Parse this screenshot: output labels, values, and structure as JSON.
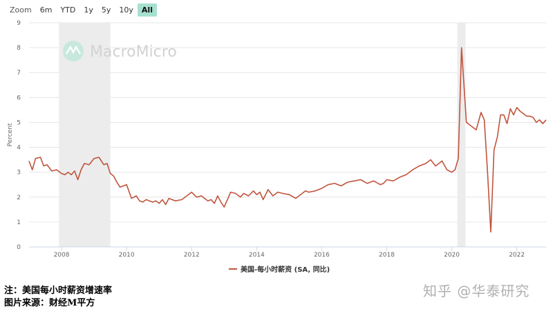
{
  "zoom": {
    "label": "Zoom",
    "buttons": [
      "6m",
      "YTD",
      "1y",
      "5y",
      "10y",
      "All"
    ],
    "active": "All"
  },
  "watermark": "MacroMicro",
  "footer": {
    "line1": "注：美国每小时薪资增速率",
    "line2": "图片来源：财经M平方",
    "watermark": "知乎 @华泰研究"
  },
  "chart_data": {
    "type": "line",
    "ylabel": "Percent",
    "ylim": [
      0,
      9
    ],
    "yticks": [
      "0",
      "1",
      "2",
      "3",
      "4",
      "5",
      "6",
      "7",
      "8",
      "9"
    ],
    "xlim": [
      2007.0,
      2022.9
    ],
    "xticks": [
      "2008",
      "2010",
      "2012",
      "2014",
      "2016",
      "2018",
      "2020",
      "2022"
    ],
    "grid": true,
    "legend": "bottom-center",
    "line_color": "#c0533c",
    "shaded_periods": [
      [
        2007.92,
        2009.5
      ],
      [
        2020.17,
        2020.42
      ]
    ],
    "series": [
      {
        "name": "美国-每小时薪资 (SA, 同比)",
        "x": [
          2007.0,
          2007.1,
          2007.2,
          2007.35,
          2007.45,
          2007.55,
          2007.7,
          2007.85,
          2008.0,
          2008.1,
          2008.2,
          2008.3,
          2008.4,
          2008.5,
          2008.6,
          2008.7,
          2008.85,
          2009.0,
          2009.15,
          2009.3,
          2009.4,
          2009.5,
          2009.6,
          2009.7,
          2009.8,
          2009.9,
          2010.0,
          2010.15,
          2010.3,
          2010.4,
          2010.5,
          2010.6,
          2010.7,
          2010.8,
          2010.9,
          2011.0,
          2011.1,
          2011.2,
          2011.3,
          2011.5,
          2011.7,
          2011.85,
          2012.0,
          2012.15,
          2012.3,
          2012.5,
          2012.6,
          2012.7,
          2012.8,
          2012.9,
          2013.0,
          2013.1,
          2013.2,
          2013.35,
          2013.5,
          2013.6,
          2013.75,
          2013.9,
          2014.0,
          2014.1,
          2014.2,
          2014.35,
          2014.5,
          2014.65,
          2014.8,
          2015.0,
          2015.2,
          2015.4,
          2015.5,
          2015.6,
          2015.8,
          2016.0,
          2016.2,
          2016.4,
          2016.6,
          2016.8,
          2017.0,
          2017.2,
          2017.4,
          2017.6,
          2017.8,
          2017.9,
          2018.0,
          2018.2,
          2018.4,
          2018.6,
          2018.8,
          2019.0,
          2019.2,
          2019.35,
          2019.5,
          2019.7,
          2019.85,
          2020.0,
          2020.1,
          2020.2,
          2020.3,
          2020.45,
          2020.6,
          2020.75,
          2020.9,
          2021.0,
          2021.1,
          2021.2,
          2021.3,
          2021.4,
          2021.5,
          2021.6,
          2021.7,
          2021.8,
          2021.9,
          2022.0,
          2022.1,
          2022.2,
          2022.3,
          2022.4,
          2022.5,
          2022.6,
          2022.7,
          2022.8,
          2022.9
        ],
        "values": [
          3.45,
          3.1,
          3.55,
          3.6,
          3.25,
          3.3,
          3.05,
          3.1,
          2.95,
          2.9,
          3.0,
          2.9,
          3.05,
          2.7,
          3.1,
          3.35,
          3.3,
          3.55,
          3.6,
          3.3,
          3.35,
          2.95,
          2.85,
          2.6,
          2.4,
          2.45,
          2.5,
          1.95,
          2.05,
          1.85,
          1.8,
          1.9,
          1.85,
          1.8,
          1.85,
          1.75,
          1.9,
          1.7,
          1.95,
          1.85,
          1.9,
          2.05,
          2.2,
          2.0,
          2.05,
          1.85,
          1.9,
          1.75,
          2.05,
          1.8,
          1.6,
          1.9,
          2.2,
          2.15,
          2.0,
          2.15,
          2.05,
          2.25,
          2.1,
          2.2,
          1.9,
          2.3,
          2.05,
          2.2,
          2.15,
          2.1,
          1.95,
          2.15,
          2.25,
          2.2,
          2.25,
          2.35,
          2.5,
          2.55,
          2.45,
          2.6,
          2.65,
          2.7,
          2.55,
          2.65,
          2.5,
          2.55,
          2.7,
          2.65,
          2.8,
          2.9,
          3.1,
          3.25,
          3.35,
          3.5,
          3.25,
          3.45,
          3.1,
          3.0,
          3.1,
          3.55,
          8.0,
          5.0,
          4.85,
          4.7,
          5.4,
          5.1,
          3.0,
          0.6,
          3.9,
          4.4,
          5.3,
          5.3,
          4.95,
          5.55,
          5.3,
          5.6,
          5.45,
          5.35,
          5.25,
          5.25,
          5.2,
          5.0,
          5.1,
          4.95,
          5.1
        ]
      }
    ]
  }
}
